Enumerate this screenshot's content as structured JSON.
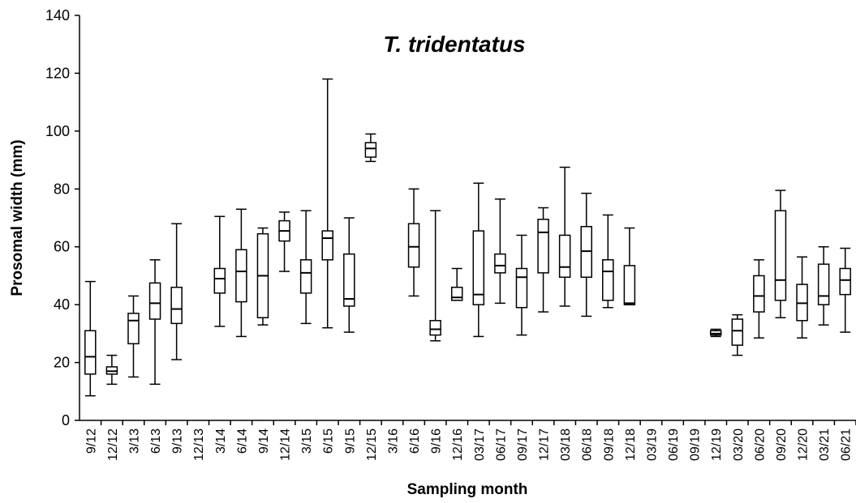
{
  "chart_data": {
    "type": "box",
    "title": "T. tridentatus",
    "x_label": "Sampling month",
    "y_label": "Prosomal width (mm)",
    "categories": [
      "9/12",
      "12/12",
      "3/13",
      "6/13",
      "9/13",
      "12/13",
      "3/14",
      "6/14",
      "9/14",
      "12/14",
      "3/15",
      "6/15",
      "9/15",
      "12/15",
      "3/16",
      "6/16",
      "9/16",
      "12/16",
      "03/17",
      "06/17",
      "09/17",
      "12/17",
      "03/18",
      "06/18",
      "09/18",
      "12/18",
      "03/19",
      "06/19",
      "09/19",
      "12/19",
      "03/20",
      "06/20",
      "09/20",
      "12/20",
      "03/21",
      "06/21"
    ],
    "min": [
      8.5,
      12.5,
      15,
      12.5,
      21,
      null,
      32.5,
      29,
      33,
      51.5,
      33.5,
      32,
      30.5,
      89.5,
      null,
      43,
      27.5,
      41.5,
      29,
      40.5,
      29.5,
      37.5,
      39.5,
      36,
      39,
      40,
      null,
      null,
      null,
      29,
      22.5,
      28.5,
      35.5,
      28.5,
      33,
      30.5
    ],
    "q1": [
      16,
      16,
      26.5,
      35,
      33.5,
      null,
      44,
      41,
      35.5,
      62,
      44,
      55.5,
      39.5,
      91,
      null,
      53,
      29.5,
      41.5,
      40,
      51,
      39,
      51,
      49.5,
      49.5,
      41.5,
      40,
      null,
      null,
      null,
      29.5,
      26,
      37.5,
      41.5,
      34.5,
      40,
      43.5
    ],
    "median": [
      22,
      17,
      34.5,
      40.5,
      38.5,
      null,
      49,
      51.5,
      50,
      65.5,
      51,
      63,
      42,
      94,
      null,
      60,
      31.5,
      42.5,
      43.5,
      53.5,
      49.5,
      65,
      53,
      58.5,
      51.5,
      40.5,
      null,
      null,
      null,
      30,
      31,
      43,
      48.5,
      40.5,
      43,
      48.5
    ],
    "q3": [
      31,
      18.5,
      37,
      47.5,
      46,
      null,
      52.5,
      59,
      64.5,
      69,
      55.5,
      65.5,
      57.5,
      96,
      null,
      68,
      34.5,
      46,
      65.5,
      57.5,
      52.5,
      69.5,
      64,
      67,
      55.5,
      53.5,
      null,
      null,
      null,
      31,
      35,
      50,
      72.5,
      47,
      54,
      52.5
    ],
    "max": [
      48,
      22.5,
      43,
      55.5,
      68,
      null,
      70.5,
      73,
      66.5,
      72,
      72.5,
      118,
      70,
      99,
      null,
      80,
      72.5,
      52.5,
      82,
      76.5,
      64,
      73.5,
      87.5,
      78.5,
      71,
      66.5,
      null,
      null,
      null,
      31.5,
      36.5,
      55.5,
      79.5,
      56.5,
      60,
      59.5
    ],
    "color": "#000000",
    "ylim": [
      0,
      140
    ],
    "yticks": [
      0,
      20,
      40,
      60,
      80,
      100,
      120,
      140
    ],
    "grid": false
  }
}
